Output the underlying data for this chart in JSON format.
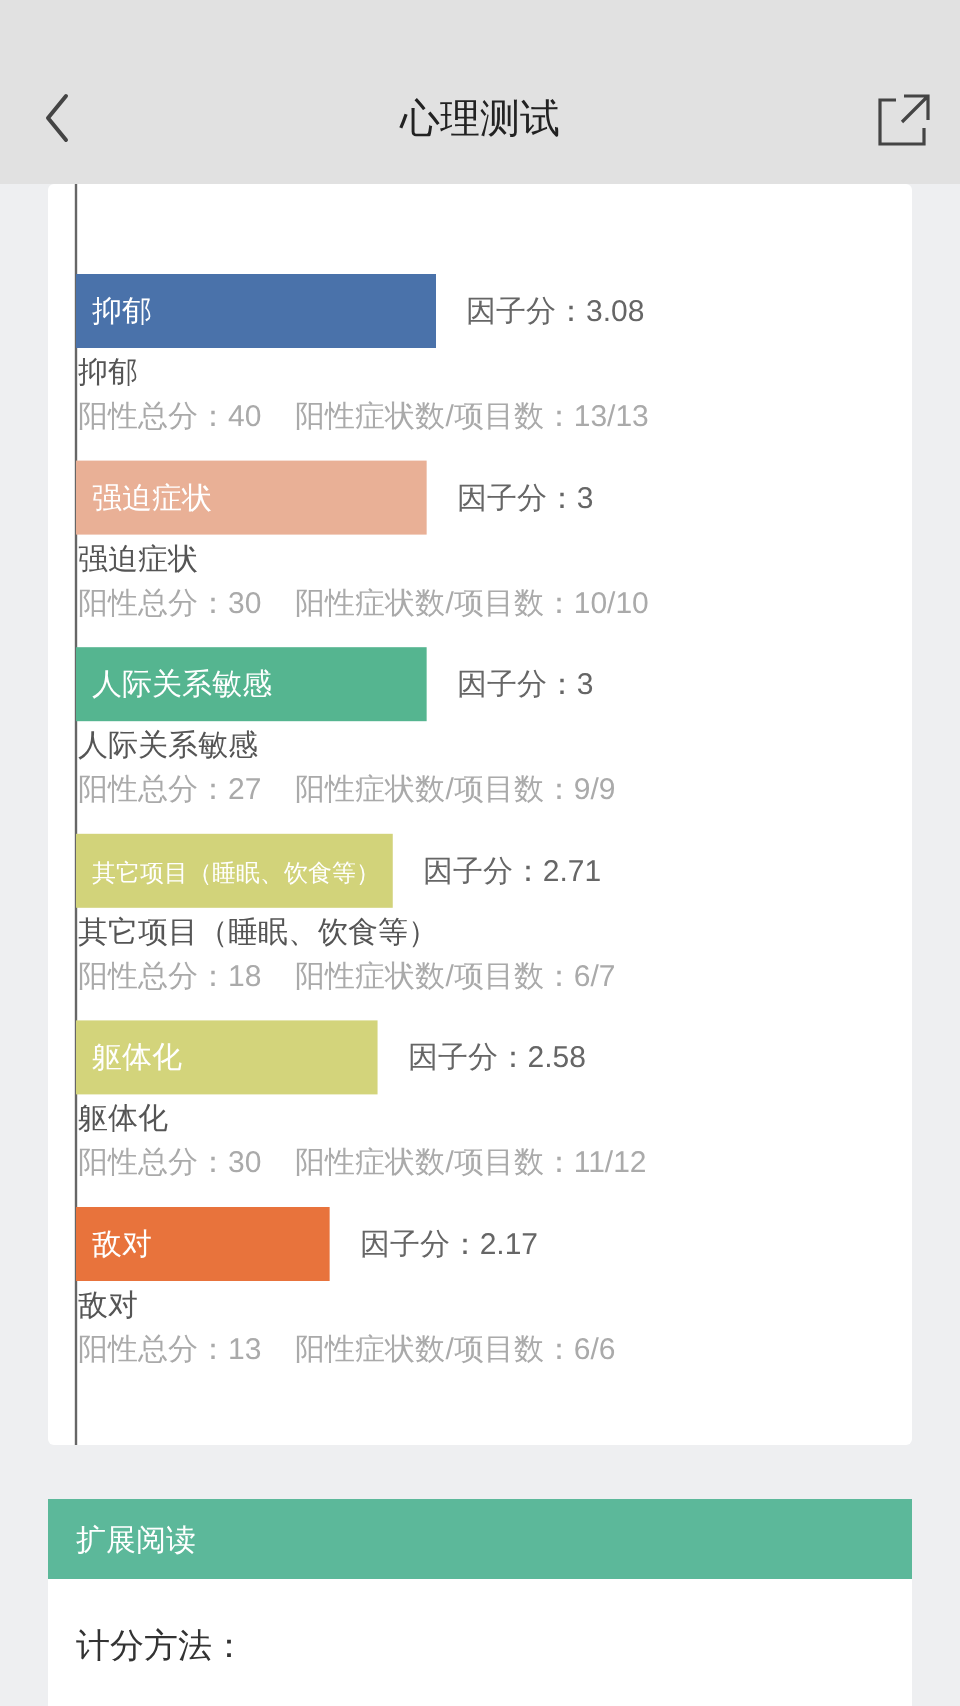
{
  "chart_data": {
    "type": "bar",
    "orientation": "horizontal",
    "title": "心理测试",
    "categories": [
      "抑郁",
      "强迫症状",
      "人际关系敏感",
      "其它项目（睡眠、饮食等）",
      "躯体化",
      "敌对"
    ],
    "values": [
      3.08,
      3,
      3,
      2.71,
      2.58,
      2.17
    ],
    "colors": [
      "#4a72aa",
      "#e9b096",
      "#55b590",
      "#d2d37a",
      "#d3d47b",
      "#e8733c"
    ],
    "value_labels": [
      "因子分：3.08",
      "因子分：3",
      "因子分：3",
      "因子分：2.71",
      "因子分：2.58",
      "因子分：2.17"
    ],
    "annotations": [
      "阳性总分：40",
      "阳性症状数/项目数：13/13",
      "阳性总分：30",
      "阳性症状数/项目数：10/10",
      "阳性总分：27",
      "阳性症状数/项目数：9/9",
      "阳性总分：18",
      "阳性症状数/项目数：6/7",
      "阳性总分：30",
      "阳性症状数/项目数：11/12",
      "阳性总分：13",
      "阳性症状数/项目数：6/6",
      "扩展阅读",
      "计分方法："
    ]
  }
}
